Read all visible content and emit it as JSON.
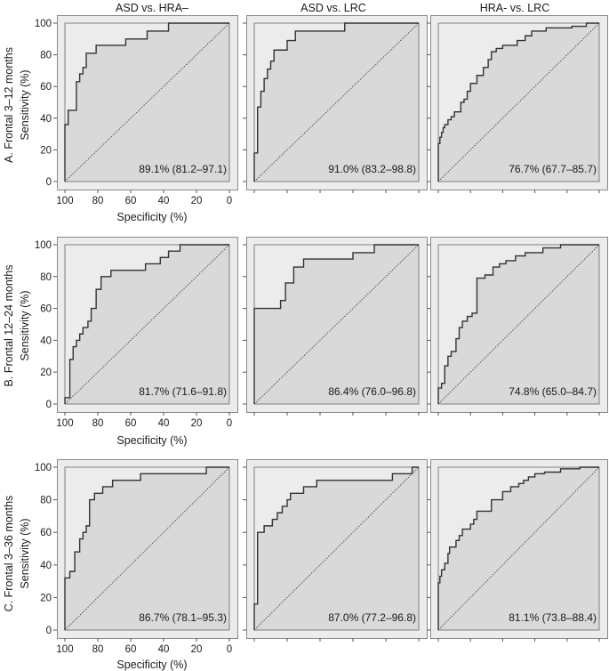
{
  "column_titles": [
    "ASD vs. HRA–",
    "ASD vs. LRC",
    "HRA- vs. LRC"
  ],
  "row_labels": [
    "A. Frontal 3–12 months",
    "B. Frontal 12–24 months",
    "C. Frontal 3–36 months"
  ],
  "ylabel": "Sensitivity (%)",
  "xlabel": "Specificity (%)",
  "colors": {
    "outer": "#ececec",
    "below_curve": "#d9d9d9",
    "curve": "#333333",
    "frame": "#8a8a8a"
  },
  "chart_data": {
    "type": "line",
    "layout": "3x3 grid of ROC curves",
    "xlim": [
      100,
      0
    ],
    "ylim": [
      0,
      100
    ],
    "x_ticks": [
      100,
      80,
      60,
      40,
      20,
      0
    ],
    "y_ticks": [
      0,
      20,
      40,
      60,
      80,
      100
    ],
    "diagonal_reference": true,
    "panels": [
      {
        "row": 0,
        "col": 0,
        "auc_label": "89.1% (81.2–97.1)",
        "points": [
          [
            100,
            0
          ],
          [
            100,
            36
          ],
          [
            98,
            36
          ],
          [
            98,
            45
          ],
          [
            93,
            45
          ],
          [
            93,
            63
          ],
          [
            91,
            63
          ],
          [
            91,
            68
          ],
          [
            89,
            68
          ],
          [
            89,
            72
          ],
          [
            87,
            72
          ],
          [
            87,
            81
          ],
          [
            81,
            81
          ],
          [
            81,
            86
          ],
          [
            73,
            86
          ],
          [
            73,
            86
          ],
          [
            63,
            86
          ],
          [
            63,
            90
          ],
          [
            50,
            90
          ],
          [
            50,
            95
          ],
          [
            37,
            95
          ],
          [
            37,
            100
          ],
          [
            0,
            100
          ]
        ]
      },
      {
        "row": 0,
        "col": 1,
        "auc_label": "91.0% (83.2–98.8)",
        "points": [
          [
            100,
            0
          ],
          [
            100,
            18
          ],
          [
            98,
            18
          ],
          [
            98,
            47
          ],
          [
            96,
            47
          ],
          [
            96,
            57
          ],
          [
            94,
            57
          ],
          [
            94,
            65
          ],
          [
            92,
            65
          ],
          [
            92,
            71
          ],
          [
            90,
            71
          ],
          [
            90,
            76
          ],
          [
            88,
            76
          ],
          [
            88,
            83
          ],
          [
            80,
            83
          ],
          [
            80,
            89
          ],
          [
            75,
            89
          ],
          [
            75,
            95
          ],
          [
            45,
            95
          ],
          [
            45,
            100
          ],
          [
            0,
            100
          ]
        ]
      },
      {
        "row": 0,
        "col": 2,
        "auc_label": "76.7% (67.7–85.7)",
        "points": [
          [
            100,
            0
          ],
          [
            100,
            24
          ],
          [
            99,
            24
          ],
          [
            99,
            28
          ],
          [
            98,
            28
          ],
          [
            98,
            31
          ],
          [
            97,
            31
          ],
          [
            97,
            34
          ],
          [
            96,
            34
          ],
          [
            96,
            36
          ],
          [
            94,
            36
          ],
          [
            94,
            39
          ],
          [
            92,
            39
          ],
          [
            92,
            41
          ],
          [
            90,
            41
          ],
          [
            90,
            44
          ],
          [
            86,
            44
          ],
          [
            86,
            50
          ],
          [
            84,
            50
          ],
          [
            84,
            52
          ],
          [
            82,
            52
          ],
          [
            82,
            57
          ],
          [
            80,
            57
          ],
          [
            80,
            62
          ],
          [
            76,
            62
          ],
          [
            76,
            67
          ],
          [
            72,
            67
          ],
          [
            72,
            72
          ],
          [
            69,
            72
          ],
          [
            69,
            77
          ],
          [
            67,
            77
          ],
          [
            67,
            82
          ],
          [
            64,
            82
          ],
          [
            64,
            84
          ],
          [
            60,
            84
          ],
          [
            60,
            86
          ],
          [
            51,
            86
          ],
          [
            51,
            89
          ],
          [
            46,
            89
          ],
          [
            46,
            92
          ],
          [
            42,
            92
          ],
          [
            42,
            95
          ],
          [
            33,
            95
          ],
          [
            33,
            97
          ],
          [
            17,
            97
          ],
          [
            17,
            98
          ],
          [
            8,
            98
          ],
          [
            8,
            100
          ],
          [
            0,
            100
          ]
        ]
      },
      {
        "row": 1,
        "col": 0,
        "auc_label": "81.7% (71.6–91.8)",
        "points": [
          [
            100,
            0
          ],
          [
            100,
            4
          ],
          [
            97,
            4
          ],
          [
            97,
            28
          ],
          [
            95,
            28
          ],
          [
            95,
            36
          ],
          [
            93,
            36
          ],
          [
            93,
            40
          ],
          [
            91,
            40
          ],
          [
            91,
            44
          ],
          [
            89,
            44
          ],
          [
            89,
            48
          ],
          [
            86,
            48
          ],
          [
            86,
            52
          ],
          [
            84,
            52
          ],
          [
            84,
            60
          ],
          [
            81,
            60
          ],
          [
            81,
            72
          ],
          [
            78,
            72
          ],
          [
            78,
            80
          ],
          [
            72,
            80
          ],
          [
            72,
            84
          ],
          [
            51,
            84
          ],
          [
            51,
            88
          ],
          [
            42,
            88
          ],
          [
            42,
            92
          ],
          [
            37,
            92
          ],
          [
            37,
            96
          ],
          [
            30,
            96
          ],
          [
            30,
            100
          ],
          [
            0,
            100
          ]
        ]
      },
      {
        "row": 1,
        "col": 1,
        "auc_label": "86.4% (76.0–96.8)",
        "points": [
          [
            100,
            0
          ],
          [
            100,
            60
          ],
          [
            84,
            60
          ],
          [
            84,
            65
          ],
          [
            81,
            65
          ],
          [
            81,
            76
          ],
          [
            76,
            76
          ],
          [
            76,
            86
          ],
          [
            70,
            86
          ],
          [
            70,
            91
          ],
          [
            40,
            91
          ],
          [
            40,
            95
          ],
          [
            27,
            95
          ],
          [
            27,
            100
          ],
          [
            0,
            100
          ]
        ]
      },
      {
        "row": 1,
        "col": 2,
        "auc_label": "74.8% (65.0–84.7)",
        "points": [
          [
            100,
            0
          ],
          [
            100,
            10
          ],
          [
            98,
            10
          ],
          [
            98,
            13
          ],
          [
            96,
            13
          ],
          [
            96,
            24
          ],
          [
            94,
            24
          ],
          [
            94,
            30
          ],
          [
            92,
            30
          ],
          [
            92,
            33
          ],
          [
            89,
            33
          ],
          [
            89,
            41
          ],
          [
            87,
            41
          ],
          [
            87,
            48
          ],
          [
            85,
            48
          ],
          [
            85,
            52
          ],
          [
            82,
            52
          ],
          [
            82,
            55
          ],
          [
            79,
            55
          ],
          [
            79,
            57
          ],
          [
            76,
            57
          ],
          [
            76,
            79
          ],
          [
            71,
            79
          ],
          [
            71,
            81
          ],
          [
            66,
            81
          ],
          [
            66,
            86
          ],
          [
            62,
            86
          ],
          [
            62,
            88
          ],
          [
            58,
            88
          ],
          [
            58,
            90
          ],
          [
            52,
            90
          ],
          [
            52,
            93
          ],
          [
            46,
            93
          ],
          [
            46,
            95
          ],
          [
            35,
            95
          ],
          [
            35,
            98
          ],
          [
            24,
            98
          ],
          [
            24,
            100
          ],
          [
            0,
            100
          ]
        ]
      },
      {
        "row": 2,
        "col": 0,
        "auc_label": "86.7% (78.1–95.3)",
        "points": [
          [
            100,
            0
          ],
          [
            100,
            32
          ],
          [
            97,
            32
          ],
          [
            97,
            36
          ],
          [
            94,
            36
          ],
          [
            94,
            48
          ],
          [
            91,
            48
          ],
          [
            91,
            56
          ],
          [
            89,
            56
          ],
          [
            89,
            60
          ],
          [
            87,
            60
          ],
          [
            87,
            64
          ],
          [
            85,
            64
          ],
          [
            85,
            80
          ],
          [
            82,
            80
          ],
          [
            82,
            84
          ],
          [
            77,
            84
          ],
          [
            77,
            88
          ],
          [
            71,
            88
          ],
          [
            71,
            92
          ],
          [
            54,
            92
          ],
          [
            54,
            96
          ],
          [
            14,
            96
          ],
          [
            14,
            100
          ],
          [
            0,
            100
          ]
        ]
      },
      {
        "row": 2,
        "col": 1,
        "auc_label": "87.0% (77.2–96.8)",
        "points": [
          [
            100,
            0
          ],
          [
            100,
            16
          ],
          [
            98,
            16
          ],
          [
            98,
            60
          ],
          [
            94,
            60
          ],
          [
            94,
            64
          ],
          [
            89,
            64
          ],
          [
            89,
            68
          ],
          [
            86,
            68
          ],
          [
            86,
            72
          ],
          [
            83,
            72
          ],
          [
            83,
            76
          ],
          [
            80,
            76
          ],
          [
            80,
            80
          ],
          [
            78,
            80
          ],
          [
            78,
            84
          ],
          [
            70,
            84
          ],
          [
            70,
            88
          ],
          [
            62,
            88
          ],
          [
            62,
            92
          ],
          [
            16,
            92
          ],
          [
            16,
            96
          ],
          [
            4,
            96
          ],
          [
            4,
            100
          ],
          [
            0,
            100
          ]
        ]
      },
      {
        "row": 2,
        "col": 2,
        "auc_label": "81.1% (73.8–88.4)",
        "points": [
          [
            100,
            0
          ],
          [
            100,
            29
          ],
          [
            99,
            29
          ],
          [
            99,
            33
          ],
          [
            98,
            33
          ],
          [
            98,
            37
          ],
          [
            96,
            37
          ],
          [
            96,
            41
          ],
          [
            94,
            41
          ],
          [
            94,
            47
          ],
          [
            93,
            47
          ],
          [
            93,
            51
          ],
          [
            89,
            51
          ],
          [
            89,
            55
          ],
          [
            87,
            55
          ],
          [
            87,
            58
          ],
          [
            85,
            58
          ],
          [
            85,
            62
          ],
          [
            80,
            62
          ],
          [
            80,
            65
          ],
          [
            78,
            65
          ],
          [
            78,
            68
          ],
          [
            76,
            68
          ],
          [
            76,
            73
          ],
          [
            67,
            73
          ],
          [
            67,
            80
          ],
          [
            60,
            80
          ],
          [
            60,
            85
          ],
          [
            55,
            85
          ],
          [
            55,
            88
          ],
          [
            50,
            88
          ],
          [
            50,
            90
          ],
          [
            47,
            90
          ],
          [
            47,
            92
          ],
          [
            44,
            92
          ],
          [
            44,
            94
          ],
          [
            40,
            94
          ],
          [
            40,
            96
          ],
          [
            34,
            96
          ],
          [
            34,
            97
          ],
          [
            24,
            97
          ],
          [
            24,
            99
          ],
          [
            12,
            99
          ],
          [
            12,
            100
          ],
          [
            0,
            100
          ]
        ]
      }
    ]
  }
}
